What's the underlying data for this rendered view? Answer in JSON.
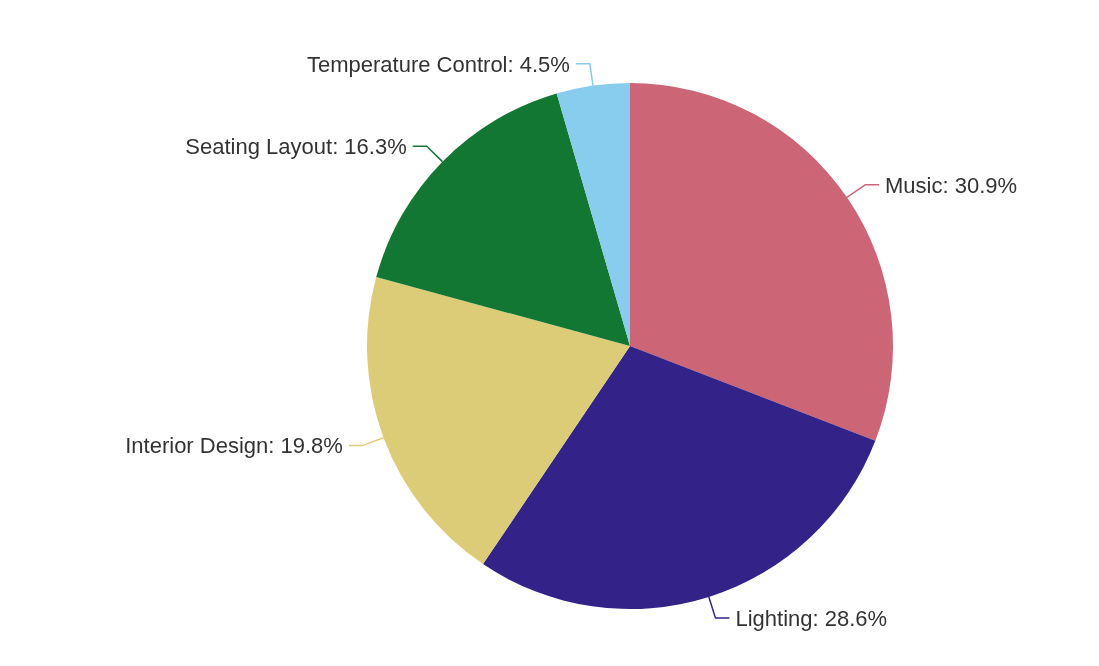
{
  "chart_data": {
    "type": "pie",
    "categories": [
      "Music",
      "Lighting",
      "Interior Design",
      "Seating Layout",
      "Temperature Control"
    ],
    "values": [
      30.9,
      28.6,
      19.8,
      16.3,
      4.5
    ],
    "colors": [
      "#cc6677",
      "#332288",
      "#ddcc77",
      "#117733",
      "#88ccee"
    ],
    "value_labels": [
      "30.9%",
      "28.6%",
      "19.8%",
      "16.3%",
      "4.5%"
    ],
    "legend": false
  }
}
